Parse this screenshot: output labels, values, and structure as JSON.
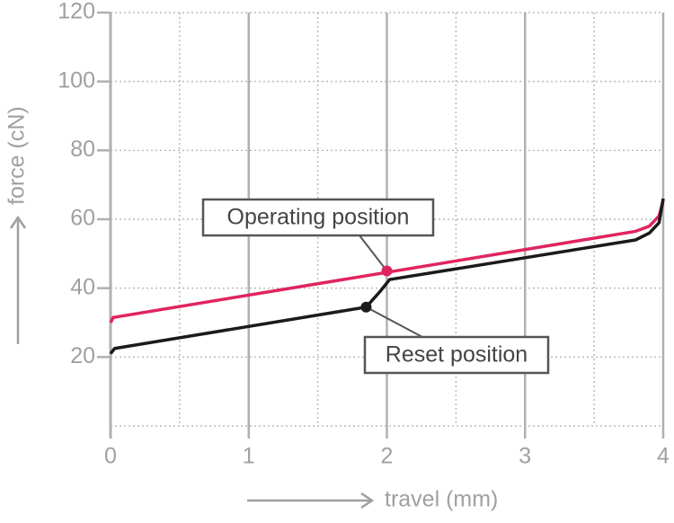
{
  "chart_data": {
    "type": "line",
    "xlabel": "travel (mm)",
    "ylabel": "force (cN)",
    "xlim": [
      0,
      4
    ],
    "ylim": [
      0,
      120
    ],
    "xticks": [
      0,
      1,
      2,
      3,
      4
    ],
    "xminorticks": [
      0.5,
      1.5,
      2.5,
      3.5
    ],
    "yticks": [
      20,
      40,
      60,
      80,
      100,
      120
    ],
    "grid": true,
    "series": [
      {
        "name": "Operating",
        "color": "#e0245e",
        "x": [
          0,
          0.02,
          3.8,
          3.9,
          3.97,
          4
        ],
        "values": [
          30,
          31.5,
          56.5,
          58,
          61,
          65.5
        ]
      },
      {
        "name": "Reset",
        "color": "#1a1a1a",
        "x": [
          0,
          0.03,
          1.85,
          1.95,
          2.02,
          3.8,
          3.9,
          3.97,
          4
        ],
        "values": [
          21,
          22.5,
          34.5,
          39,
          42.5,
          54,
          56,
          59,
          66
        ]
      }
    ],
    "annotations": [
      {
        "text": "Operating position",
        "x": 2,
        "y": 45,
        "color": "#e0245e"
      },
      {
        "text": "Reset position",
        "x": 1.85,
        "y": 34.5,
        "color": "#1a1a1a"
      }
    ]
  }
}
